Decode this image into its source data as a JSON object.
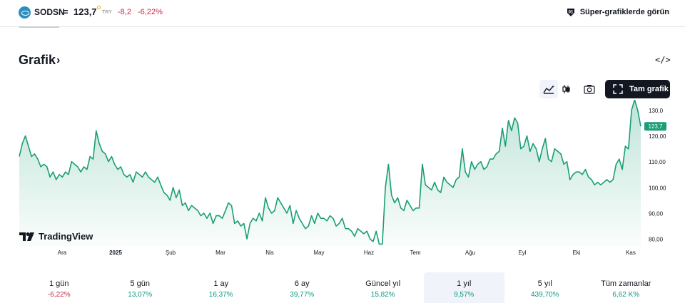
{
  "header": {
    "symbol": "SODSN",
    "equals": "=",
    "price": "123,7",
    "currency": "TRY",
    "change": "-8,2",
    "change_percent": "-6,22%",
    "super_link": "Süper-grafiklerde görün"
  },
  "section": {
    "title": "Grafik",
    "chevron": "›",
    "embed": "</>"
  },
  "toolbar": {
    "full_chart_label": "Tam grafik"
  },
  "branding": {
    "logo_text": "TradingView"
  },
  "colors": {
    "line": "#1a9e76",
    "negative": "#c5283d",
    "positive": "#089981",
    "price_badge": "#1a9e76"
  },
  "chart_data": {
    "type": "area",
    "title": "",
    "xlabel": "",
    "ylabel": "",
    "ylim": [
      77,
      134
    ],
    "grid": false,
    "x_ticks": [
      "Ara",
      "2025",
      "Şub",
      "Mar",
      "Nis",
      "May",
      "Haz",
      "Tem",
      "Ağu",
      "Eyl",
      "Eki",
      "Kas"
    ],
    "y_ticks": [
      "80,00",
      "90,00",
      "100,00",
      "110,00",
      "120,00",
      "130,0"
    ],
    "y_tick_values": [
      80,
      90,
      100,
      110,
      120,
      130
    ],
    "last_price_label": "123,7",
    "last_price": 123.7,
    "series": [
      {
        "values": [
          112,
          117,
          120,
          116,
          112,
          113,
          111,
          108,
          109,
          108,
          104,
          106,
          103,
          105,
          104,
          106,
          105,
          110,
          109,
          108,
          106,
          108,
          107,
          112,
          111,
          122,
          117,
          114,
          113,
          110,
          112,
          109,
          107,
          108,
          105,
          104,
          105,
          102,
          106,
          105,
          104,
          106,
          104,
          103,
          102,
          104,
          101,
          98,
          97,
          95,
          100,
          96,
          99,
          93,
          94,
          91,
          93,
          92,
          91,
          89,
          90,
          88,
          90,
          86,
          89,
          89,
          88,
          91,
          94,
          93,
          86,
          87,
          85,
          86,
          80,
          86,
          88,
          87,
          90,
          87,
          96,
          92,
          90,
          91,
          96,
          94,
          92,
          90,
          93,
          86,
          91,
          88,
          86,
          84,
          85,
          89,
          86,
          90,
          88,
          88,
          87,
          89,
          88,
          85,
          86,
          88,
          84,
          84,
          83,
          81,
          84,
          83,
          82,
          83,
          80,
          79,
          83,
          78,
          78,
          100,
          109,
          97,
          94,
          96,
          92,
          91,
          95,
          93,
          91,
          92,
          92,
          109,
          101,
          100,
          99,
          102,
          99,
          98,
          104,
          102,
          101,
          100,
          103,
          104,
          115,
          106,
          104,
          110,
          107,
          109,
          110,
          107,
          108,
          111,
          111,
          113,
          114,
          123,
          116,
          126,
          122,
          127,
          125,
          115,
          116,
          120,
          114,
          117,
          115,
          110,
          115,
          119,
          111,
          110,
          115,
          114,
          113,
          109,
          110,
          103,
          105,
          106,
          106,
          105,
          107,
          104,
          103,
          101,
          102,
          101,
          102,
          103,
          102,
          103,
          109,
          111,
          107,
          116,
          115,
          130,
          134,
          130,
          123.7
        ]
      }
    ]
  },
  "periods": [
    {
      "label": "1 gün",
      "value": "-6,22%",
      "trend": "neg",
      "active": false
    },
    {
      "label": "5 gün",
      "value": "13,07%",
      "trend": "pos",
      "active": false
    },
    {
      "label": "1 ay",
      "value": "16,37%",
      "trend": "pos",
      "active": false
    },
    {
      "label": "6 ay",
      "value": "39,77%",
      "trend": "pos",
      "active": false
    },
    {
      "label": "Güncel yıl",
      "value": "15,82%",
      "trend": "pos",
      "active": false
    },
    {
      "label": "1 yıl",
      "value": "9,57%",
      "trend": "pos",
      "active": true
    },
    {
      "label": "5 yıl",
      "value": "439,70%",
      "trend": "pos",
      "active": false
    },
    {
      "label": "Tüm zamanlar",
      "value": "6,62 K%",
      "trend": "pos",
      "active": false
    }
  ]
}
